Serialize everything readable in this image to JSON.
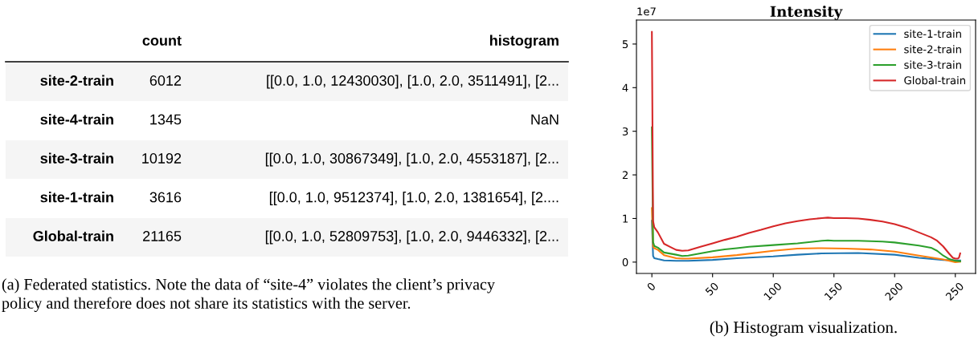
{
  "chart_data": [
    {
      "type": "other",
      "categories": [
        "count",
        "histogram"
      ],
      "y_categories": [
        "site-2-train",
        "site-4-train",
        "site-3-train",
        "site-1-train",
        "Global-train"
      ],
      "cell_labels": [
        [
          "6012",
          "[[0.0, 1.0, 12430030], [1.0, 2.0, 3511491], [2..."
        ],
        [
          "1345",
          "NaN"
        ],
        [
          "10192",
          "[[0.0, 1.0, 30867349], [1.0, 2.0, 4553187], [2..."
        ],
        [
          "3616",
          "[[0.0, 1.0, 9512374], [1.0, 2.0, 1381654], [2...."
        ],
        [
          "21165",
          "[[0.0, 1.0, 52809753], [1.0, 2.0, 9446332], [2..."
        ]
      ],
      "annotations": [
        "(a) Federated statistics. Note the data of “site-4” violates the client’s privacy\npolicy and therefore does not share its statistics with the server."
      ]
    },
    {
      "type": "line",
      "title": "Intensity",
      "annotations": [
        "1e7",
        "(b) Histogram visualization."
      ],
      "xlim": [
        -12.7,
        266.7
      ],
      "xticks": [
        0,
        50,
        100,
        150,
        200,
        250
      ],
      "ylim": [
        -0.26,
        5.55
      ],
      "yticks": [
        0,
        1,
        2,
        3,
        4,
        5
      ],
      "legend": "top right",
      "series": [
        {
          "name": "site-1-train",
          "color": "#1f77b4",
          "x": [
            0,
            1,
            2,
            5,
            10,
            20,
            30,
            50,
            70,
            100,
            120,
            140,
            170,
            200,
            220,
            240,
            250,
            254
          ],
          "values": [
            0.95,
            0.14,
            0.09,
            0.07,
            0.04,
            0.03,
            0.03,
            0.05,
            0.09,
            0.13,
            0.17,
            0.2,
            0.21,
            0.17,
            0.1,
            0.05,
            0.04,
            0.04
          ]
        },
        {
          "name": "site-2-train",
          "color": "#ff7f0e",
          "x": [
            0,
            1,
            2,
            5,
            10,
            20,
            25,
            30,
            50,
            70,
            100,
            120,
            140,
            160,
            180,
            200,
            220,
            240,
            250,
            254
          ],
          "values": [
            1.24,
            0.35,
            0.32,
            0.28,
            0.16,
            0.09,
            0.08,
            0.08,
            0.11,
            0.16,
            0.26,
            0.31,
            0.32,
            0.31,
            0.29,
            0.24,
            0.15,
            0.06,
            0.0,
            0.01
          ]
        },
        {
          "name": "site-3-train",
          "color": "#2ca02c",
          "x": [
            0,
            1,
            2,
            5,
            10,
            20,
            25,
            30,
            40,
            50,
            60,
            70,
            80,
            100,
            120,
            140,
            145,
            150,
            170,
            190,
            200,
            220,
            230,
            235,
            240,
            245,
            250,
            254
          ],
          "values": [
            3.09,
            0.46,
            0.37,
            0.33,
            0.22,
            0.17,
            0.14,
            0.15,
            0.2,
            0.25,
            0.29,
            0.32,
            0.35,
            0.39,
            0.43,
            0.49,
            0.5,
            0.49,
            0.49,
            0.47,
            0.45,
            0.38,
            0.33,
            0.26,
            0.15,
            0.07,
            0.03,
            0.02
          ]
        },
        {
          "name": "Global-train",
          "color": "#d62728",
          "x": [
            0,
            1,
            2,
            5,
            10,
            15,
            20,
            25,
            30,
            40,
            50,
            60,
            70,
            80,
            90,
            100,
            110,
            120,
            130,
            140,
            145,
            150,
            160,
            170,
            180,
            190,
            200,
            210,
            220,
            230,
            235,
            240,
            245,
            248,
            250,
            252,
            253,
            254
          ],
          "values": [
            5.28,
            0.94,
            0.8,
            0.68,
            0.42,
            0.35,
            0.28,
            0.26,
            0.27,
            0.35,
            0.43,
            0.51,
            0.58,
            0.67,
            0.74,
            0.82,
            0.89,
            0.94,
            0.98,
            1.01,
            1.02,
            1.01,
            1.01,
            1.0,
            0.97,
            0.93,
            0.87,
            0.79,
            0.68,
            0.57,
            0.49,
            0.36,
            0.19,
            0.1,
            0.08,
            0.08,
            0.1,
            0.2
          ]
        }
      ]
    }
  ]
}
